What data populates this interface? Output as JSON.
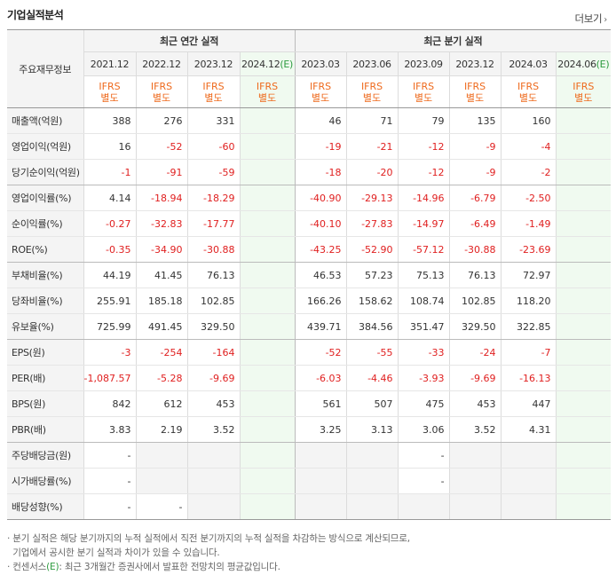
{
  "title": "기업실적분석",
  "more_label": "더보기",
  "label_header": "주요재무정보",
  "annual_header": "최근 연간 실적",
  "quarter_header": "최근 분기 실적",
  "annual_periods": [
    "2021.12",
    "2022.12",
    "2023.12",
    "2024.12"
  ],
  "quarter_periods": [
    "2023.03",
    "2023.06",
    "2023.09",
    "2023.12",
    "2024.03",
    "2024.06"
  ],
  "estimate_mark": "(E)",
  "ifrs_top": "IFRS",
  "ifrs_bottom": "별도",
  "rows": [
    {
      "label": "매출액(억원)",
      "annual": [
        "388",
        "276",
        "331",
        ""
      ],
      "quarter": [
        "46",
        "71",
        "79",
        "135",
        "160",
        ""
      ]
    },
    {
      "label": "영업이익(억원)",
      "annual": [
        "16",
        "-52",
        "-60",
        ""
      ],
      "quarter": [
        "-19",
        "-21",
        "-12",
        "-9",
        "-4",
        ""
      ]
    },
    {
      "label": "당기순이익(억원)",
      "annual": [
        "-1",
        "-91",
        "-59",
        ""
      ],
      "quarter": [
        "-18",
        "-20",
        "-12",
        "-9",
        "-2",
        ""
      ]
    },
    {
      "label": "영업이익률(%)",
      "annual": [
        "4.14",
        "-18.94",
        "-18.29",
        ""
      ],
      "quarter": [
        "-40.90",
        "-29.13",
        "-14.96",
        "-6.79",
        "-2.50",
        ""
      ]
    },
    {
      "label": "순이익률(%)",
      "annual": [
        "-0.27",
        "-32.83",
        "-17.77",
        ""
      ],
      "quarter": [
        "-40.10",
        "-27.83",
        "-14.97",
        "-6.49",
        "-1.49",
        ""
      ]
    },
    {
      "label": "ROE(%)",
      "annual": [
        "-0.35",
        "-34.90",
        "-30.88",
        ""
      ],
      "quarter": [
        "-43.25",
        "-52.90",
        "-57.12",
        "-30.88",
        "-23.69",
        ""
      ]
    },
    {
      "label": "부채비율(%)",
      "annual": [
        "44.19",
        "41.45",
        "76.13",
        ""
      ],
      "quarter": [
        "46.53",
        "57.23",
        "75.13",
        "76.13",
        "72.97",
        ""
      ]
    },
    {
      "label": "당좌비율(%)",
      "annual": [
        "255.91",
        "185.18",
        "102.85",
        ""
      ],
      "quarter": [
        "166.26",
        "158.62",
        "108.74",
        "102.85",
        "118.20",
        ""
      ]
    },
    {
      "label": "유보율(%)",
      "annual": [
        "725.99",
        "491.45",
        "329.50",
        ""
      ],
      "quarter": [
        "439.71",
        "384.56",
        "351.47",
        "329.50",
        "322.85",
        ""
      ]
    },
    {
      "label": "EPS(원)",
      "annual": [
        "-3",
        "-254",
        "-164",
        ""
      ],
      "quarter": [
        "-52",
        "-55",
        "-33",
        "-24",
        "-7",
        ""
      ]
    },
    {
      "label": "PER(배)",
      "annual": [
        "-1,087.57",
        "-5.28",
        "-9.69",
        ""
      ],
      "quarter": [
        "-6.03",
        "-4.46",
        "-3.93",
        "-9.69",
        "-16.13",
        ""
      ]
    },
    {
      "label": "BPS(원)",
      "annual": [
        "842",
        "612",
        "453",
        ""
      ],
      "quarter": [
        "561",
        "507",
        "475",
        "453",
        "447",
        ""
      ]
    },
    {
      "label": "PBR(배)",
      "annual": [
        "3.83",
        "2.19",
        "3.52",
        ""
      ],
      "quarter": [
        "3.25",
        "3.13",
        "3.06",
        "3.52",
        "4.31",
        ""
      ]
    },
    {
      "label": "주당배당금(원)",
      "annual": [
        "-",
        "",
        "",
        ""
      ],
      "quarter": [
        "",
        "",
        "-",
        "",
        "",
        ""
      ]
    },
    {
      "label": "시가배당률(%)",
      "annual": [
        "-",
        "",
        "",
        ""
      ],
      "quarter": [
        "",
        "",
        "-",
        "",
        "",
        ""
      ]
    },
    {
      "label": "배당성향(%)",
      "annual": [
        "-",
        "-",
        "",
        ""
      ],
      "quarter": [
        "",
        "",
        "",
        "",
        "",
        ""
      ]
    }
  ],
  "notes": [
    "· 분기 실적은 해당 분기까지의 누적 실적에서 직전 분기까지의 누적 실적을 차감하는 방식으로 계산되므로,",
    "  기업에서 공시한 분기 실적과 차이가 있을 수 있습니다.",
    "· 컨센서스",
    ": 최근 3개월간 증권사에서 발표한 전망치의 평균값입니다."
  ]
}
